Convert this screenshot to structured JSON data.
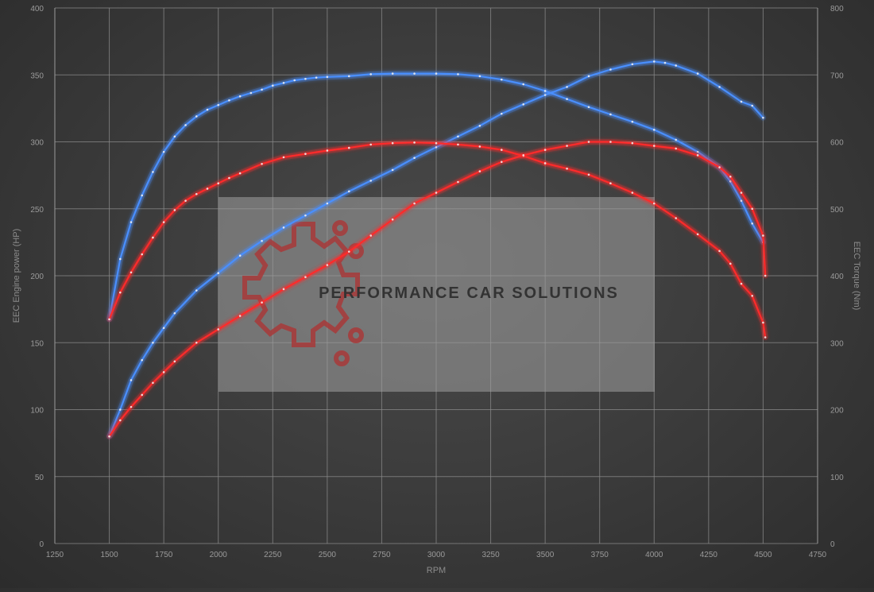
{
  "colors": {
    "power_stock": "#ff2a2a",
    "power_tuned": "#4a8fff",
    "torque_stock": "#ff2a2a",
    "torque_tuned": "#4a8fff",
    "grid": "#8a8a8a",
    "watermark_box": "#9a9a9a",
    "watermark_logo": "#a83a3a",
    "watermark_text": "#3a3a3a"
  },
  "watermark": {
    "text": "PERFORMANCE CAR SOLUTIONS"
  },
  "chart_data": {
    "type": "line",
    "title": "",
    "xlabel": "RPM",
    "ylabel_left": "EEC Engine power (HP)",
    "ylabel_right": "EEC Torque (Nm)",
    "xlim": [
      1250,
      4750
    ],
    "ylim_left": [
      0,
      400
    ],
    "ylim_right": [
      0,
      800
    ],
    "x_ticks": [
      "1250",
      "1500",
      "1750",
      "2000",
      "2250",
      "2500",
      "2750",
      "3000",
      "3250",
      "3500",
      "3750",
      "4000",
      "4250",
      "4500",
      "4750"
    ],
    "y_left_ticks": [
      "0",
      "50",
      "100",
      "150",
      "200",
      "250",
      "300",
      "350",
      "400"
    ],
    "y_right_ticks": [
      "0",
      "100",
      "200",
      "300",
      "400",
      "500",
      "600",
      "700",
      "800"
    ],
    "grid": true,
    "series": [
      {
        "axis": "right",
        "color_key": "torque_tuned",
        "x": [
          1500,
          1550,
          1600,
          1650,
          1700,
          1750,
          1800,
          1850,
          1900,
          1950,
          2000,
          2050,
          2100,
          2150,
          2200,
          2250,
          2300,
          2350,
          2400,
          2450,
          2500,
          2600,
          2700,
          2800,
          2900,
          3000,
          3100,
          3200,
          3300,
          3400,
          3500
        ],
        "values": [
          335,
          425,
          480,
          520,
          555,
          585,
          608,
          625,
          638,
          648,
          655,
          662,
          668,
          673,
          678,
          684,
          688,
          692,
          694,
          696,
          697,
          698,
          701,
          702,
          702,
          702,
          701,
          698,
          693,
          686,
          676
        ]
      },
      {
        "axis": "left",
        "color_key": "power_tuned",
        "x": [
          1500,
          1550,
          1600,
          1650,
          1700,
          1750,
          1800,
          1900,
          2000,
          2100,
          2200,
          2300,
          2400,
          2500,
          2600,
          2700,
          2800,
          2900,
          3000,
          3100,
          3200,
          3300,
          3400,
          3500,
          3600,
          3700,
          3800,
          3900,
          4000,
          4050,
          4100,
          4200,
          4300,
          4400,
          4450,
          4500
        ],
        "values": [
          80,
          100,
          122,
          137,
          150,
          161,
          172,
          189,
          202,
          215,
          226,
          236,
          245,
          254,
          263,
          271,
          279,
          288,
          296,
          304,
          312,
          321,
          328,
          335,
          341,
          349,
          354,
          358,
          360,
          359,
          357,
          351,
          341,
          330,
          327,
          318
        ]
      },
      {
        "axis": "right",
        "color_key": "torque_tuned",
        "x": [
          3500,
          3600,
          3700,
          3800,
          3900,
          4000,
          4100,
          4200,
          4300,
          4350,
          4400,
          4450,
          4500
        ],
        "values": [
          676,
          664,
          652,
          641,
          630,
          618,
          603,
          585,
          562,
          541,
          512,
          478,
          450
        ]
      },
      {
        "axis": "right",
        "color_key": "torque_stock",
        "x": [
          1500,
          1550,
          1600,
          1650,
          1700,
          1750,
          1800,
          1850,
          1900,
          1950,
          2000,
          2050,
          2100,
          2200,
          2300,
          2400,
          2500,
          2600,
          2700,
          2800,
          2900,
          3000,
          3100,
          3200,
          3300,
          3400,
          3500
        ],
        "values": [
          335,
          375,
          405,
          432,
          457,
          480,
          498,
          512,
          522,
          530,
          538,
          546,
          553,
          567,
          577,
          582,
          587,
          591,
          596,
          598,
          599,
          598,
          596,
          593,
          588,
          579,
          568
        ]
      },
      {
        "axis": "left",
        "color_key": "power_stock",
        "x": [
          1500,
          1550,
          1600,
          1650,
          1700,
          1750,
          1800,
          1900,
          2000,
          2100,
          2200,
          2300,
          2400,
          2500,
          2600,
          2700,
          2800,
          2900,
          3000,
          3100,
          3200,
          3300,
          3400,
          3500,
          3600,
          3700,
          3800,
          3900,
          4000,
          4100,
          4200,
          4300,
          4350,
          4400,
          4450,
          4500,
          4510
        ],
        "values": [
          80,
          92,
          102,
          111,
          120,
          128,
          136,
          150,
          160,
          170,
          180,
          190,
          199,
          208,
          218,
          230,
          242,
          254,
          262,
          270,
          278,
          285,
          290,
          294,
          297,
          300,
          300,
          299,
          297,
          295,
          290,
          281,
          274,
          262,
          250,
          230,
          200
        ]
      },
      {
        "axis": "right",
        "color_key": "torque_stock",
        "x": [
          3500,
          3600,
          3700,
          3800,
          3900,
          4000,
          4100,
          4200,
          4300,
          4350,
          4400,
          4450,
          4500,
          4510
        ],
        "values": [
          568,
          560,
          551,
          538,
          524,
          508,
          486,
          462,
          437,
          418,
          388,
          370,
          330,
          308
        ]
      }
    ]
  }
}
